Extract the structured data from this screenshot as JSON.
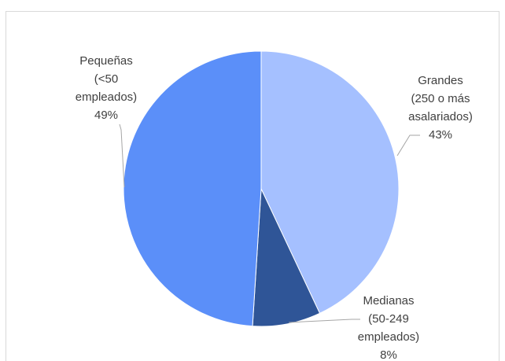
{
  "chart_data": {
    "type": "pie",
    "slices": [
      {
        "label": [
          "Grandes",
          "(250 o más",
          "asalariados)",
          "43%"
        ],
        "value": 43,
        "color": "#a5c0ff"
      },
      {
        "label": [
          "Medianas",
          "(50-249",
          "empleados)",
          "8%"
        ],
        "value": 8,
        "color": "#2f5597"
      },
      {
        "label": [
          "Pequeñas",
          "(<50",
          "empleados)",
          "49%"
        ],
        "value": 49,
        "color": "#5b8ff9"
      }
    ],
    "start_angle_deg": 0,
    "direction": "clockwise",
    "legend": "none",
    "leader_line_color": "#a6a6a6"
  }
}
